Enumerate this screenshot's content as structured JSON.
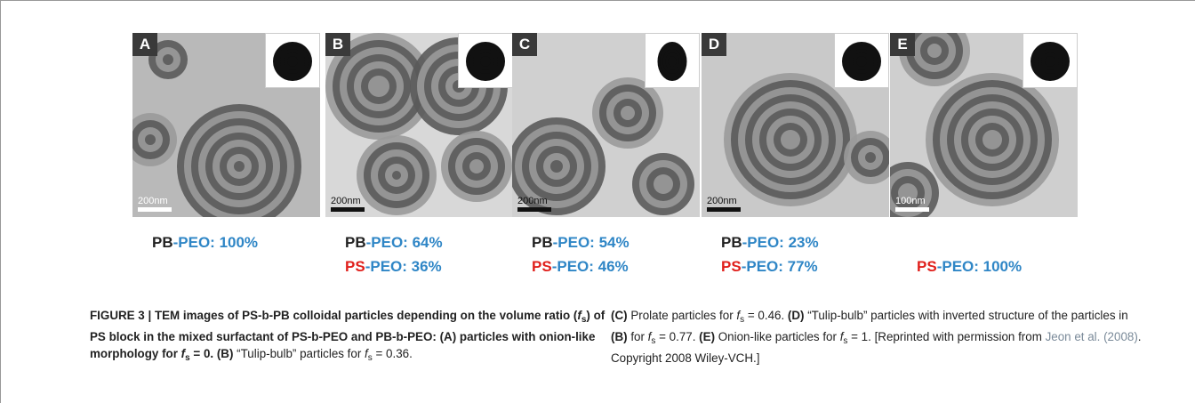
{
  "panels": [
    {
      "letter": "A",
      "scale_bar": "200nm",
      "composition": [
        {
          "block": "PB",
          "suffix": "-PEO: 100%",
          "color": "#222222"
        }
      ]
    },
    {
      "letter": "B",
      "scale_bar": "200nm",
      "composition": [
        {
          "block": "PB",
          "suffix": "-PEO: 64%",
          "color": "#222222"
        },
        {
          "block": "PS",
          "suffix": "-PEO: 36%",
          "color": "#e0201c"
        }
      ]
    },
    {
      "letter": "C",
      "scale_bar": "200nm",
      "composition": [
        {
          "block": "PB",
          "suffix": "-PEO: 54%",
          "color": "#222222"
        },
        {
          "block": "PS",
          "suffix": "-PEO: 46%",
          "color": "#e0201c"
        }
      ]
    },
    {
      "letter": "D",
      "scale_bar": "200nm",
      "composition": [
        {
          "block": "PB",
          "suffix": "-PEO: 23%",
          "color": "#222222"
        },
        {
          "block": "PS",
          "suffix": "-PEO: 77%",
          "color": "#e0201c"
        }
      ]
    },
    {
      "letter": "E",
      "scale_bar": "100nm",
      "composition": [
        null,
        {
          "block": "PS",
          "suffix": "-PEO: 100%",
          "color": "#e0201c"
        }
      ]
    }
  ],
  "caption": {
    "left": [
      {
        "text": "FIGURE 3 | TEM images of PS-b-PB colloidal particles depending on the volume ratio (",
        "style": "b"
      },
      {
        "text": "f",
        "style": "bi"
      },
      {
        "text": "s",
        "style": "bsub"
      },
      {
        "text": ") of PS block in the mixed surfactant of PS-b-PEO and PB-b-PEO: (A) particles with onion-like morphology for ",
        "style": "b"
      },
      {
        "text": "f",
        "style": "bi"
      },
      {
        "text": "s",
        "style": "bsub"
      },
      {
        "text": " = 0. (B)",
        "style": "b"
      },
      {
        "text": " “Tulip-bulb” particles for ",
        "style": "n"
      },
      {
        "text": "f",
        "style": "i"
      },
      {
        "text": "s",
        "style": "sub"
      },
      {
        "text": " = 0.36.",
        "style": "n"
      }
    ],
    "right": [
      {
        "text": "(C)",
        "style": "b"
      },
      {
        "text": " Prolate particles for ",
        "style": "n"
      },
      {
        "text": "f",
        "style": "i"
      },
      {
        "text": "s",
        "style": "sub"
      },
      {
        "text": " = 0.46. ",
        "style": "n"
      },
      {
        "text": "(D)",
        "style": "b"
      },
      {
        "text": " “Tulip-bulb” particles with inverted structure of the particles in ",
        "style": "n"
      },
      {
        "text": "(B)",
        "style": "b"
      },
      {
        "text": " for ",
        "style": "n"
      },
      {
        "text": "f",
        "style": "i"
      },
      {
        "text": "s",
        "style": "sub"
      },
      {
        "text": " = 0.77. ",
        "style": "n"
      },
      {
        "text": "(E)",
        "style": "b"
      },
      {
        "text": " Onion-like particles for ",
        "style": "n"
      },
      {
        "text": "f",
        "style": "i"
      },
      {
        "text": "s",
        "style": "sub"
      },
      {
        "text": " = 1. [Reprinted with permission from ",
        "style": "n"
      },
      {
        "text": "Jeon et al. (2008)",
        "style": "link"
      },
      {
        "text": ". Copyright 2008 Wiley-VCH.]",
        "style": "n"
      }
    ]
  }
}
